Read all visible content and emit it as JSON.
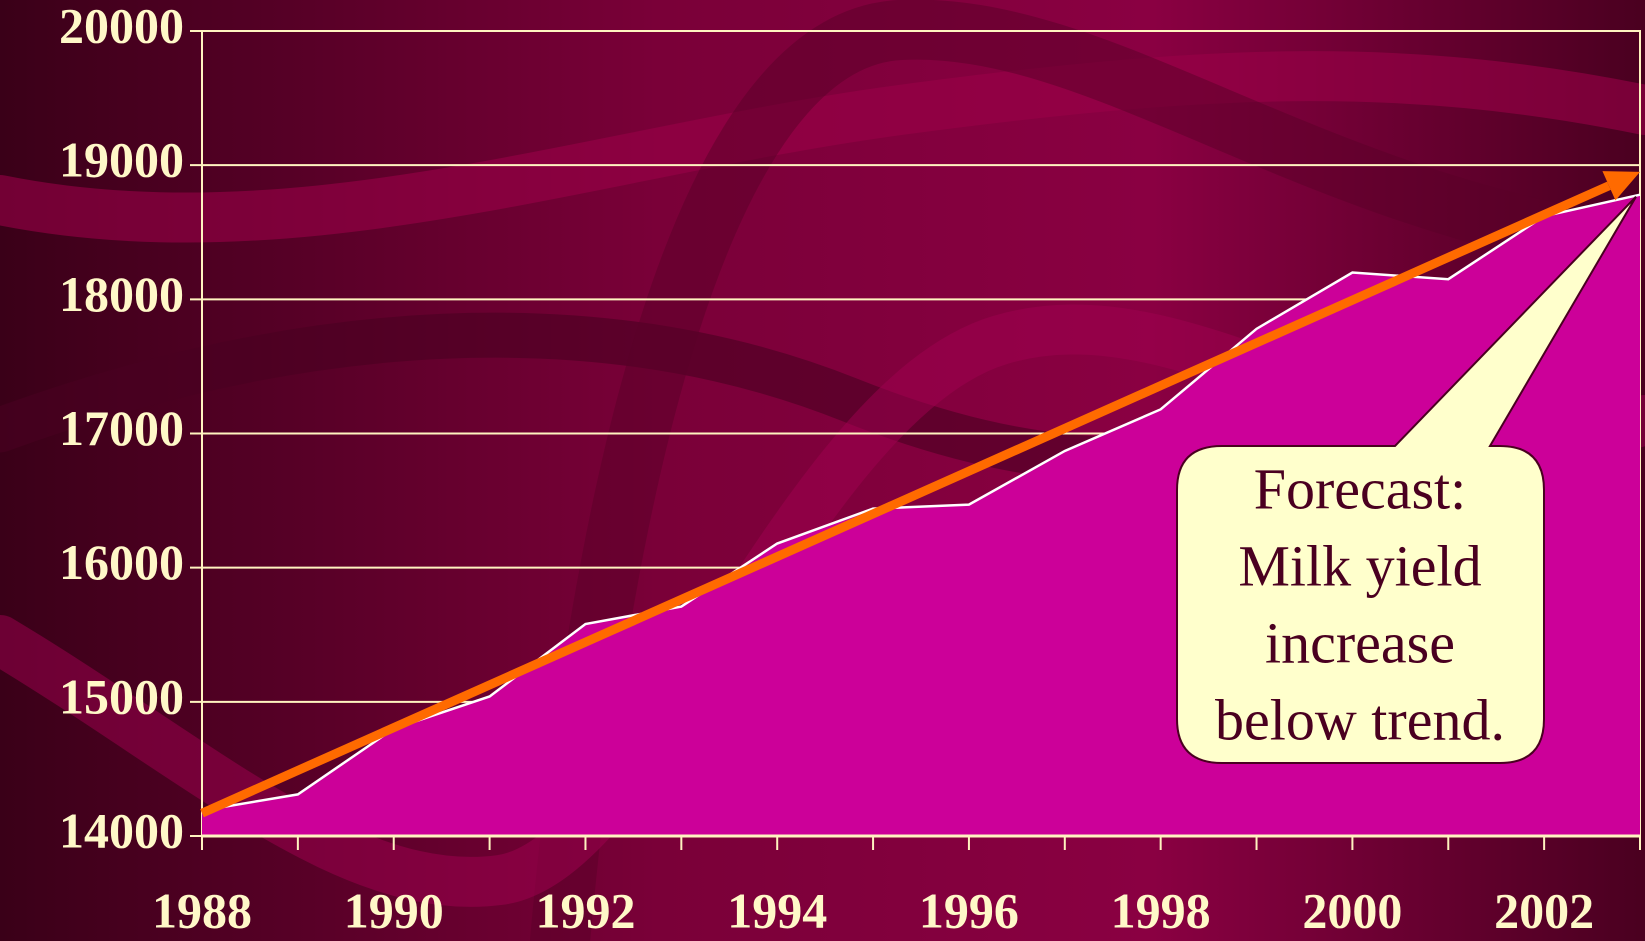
{
  "chart_data": {
    "type": "area",
    "x": [
      1988,
      1989,
      1990,
      1991,
      1992,
      1993,
      1994,
      1995,
      1996,
      1997,
      1998,
      1999,
      2000,
      2001,
      2002,
      2003
    ],
    "values": [
      14190,
      14310,
      14800,
      15040,
      15580,
      15710,
      16180,
      16440,
      16470,
      16870,
      17180,
      17780,
      18200,
      18150,
      18620,
      18780
    ],
    "color": "#cc0099",
    "line_color": "#ffffff",
    "xlim": [
      1988,
      2003
    ],
    "xticks": [
      1988,
      1990,
      1992,
      1994,
      1996,
      1998,
      2000,
      2002
    ],
    "ylim": [
      14000,
      20000
    ],
    "yticks": [
      14000,
      15000,
      16000,
      17000,
      18000,
      19000,
      20000
    ],
    "grid": true,
    "trend": {
      "x": [
        1988,
        2003
      ],
      "values": [
        14170,
        18950
      ],
      "color": "#ff6a00"
    },
    "annotation": {
      "lines": [
        "Forecast:",
        "Milk yield",
        "increase",
        "below trend."
      ]
    }
  }
}
